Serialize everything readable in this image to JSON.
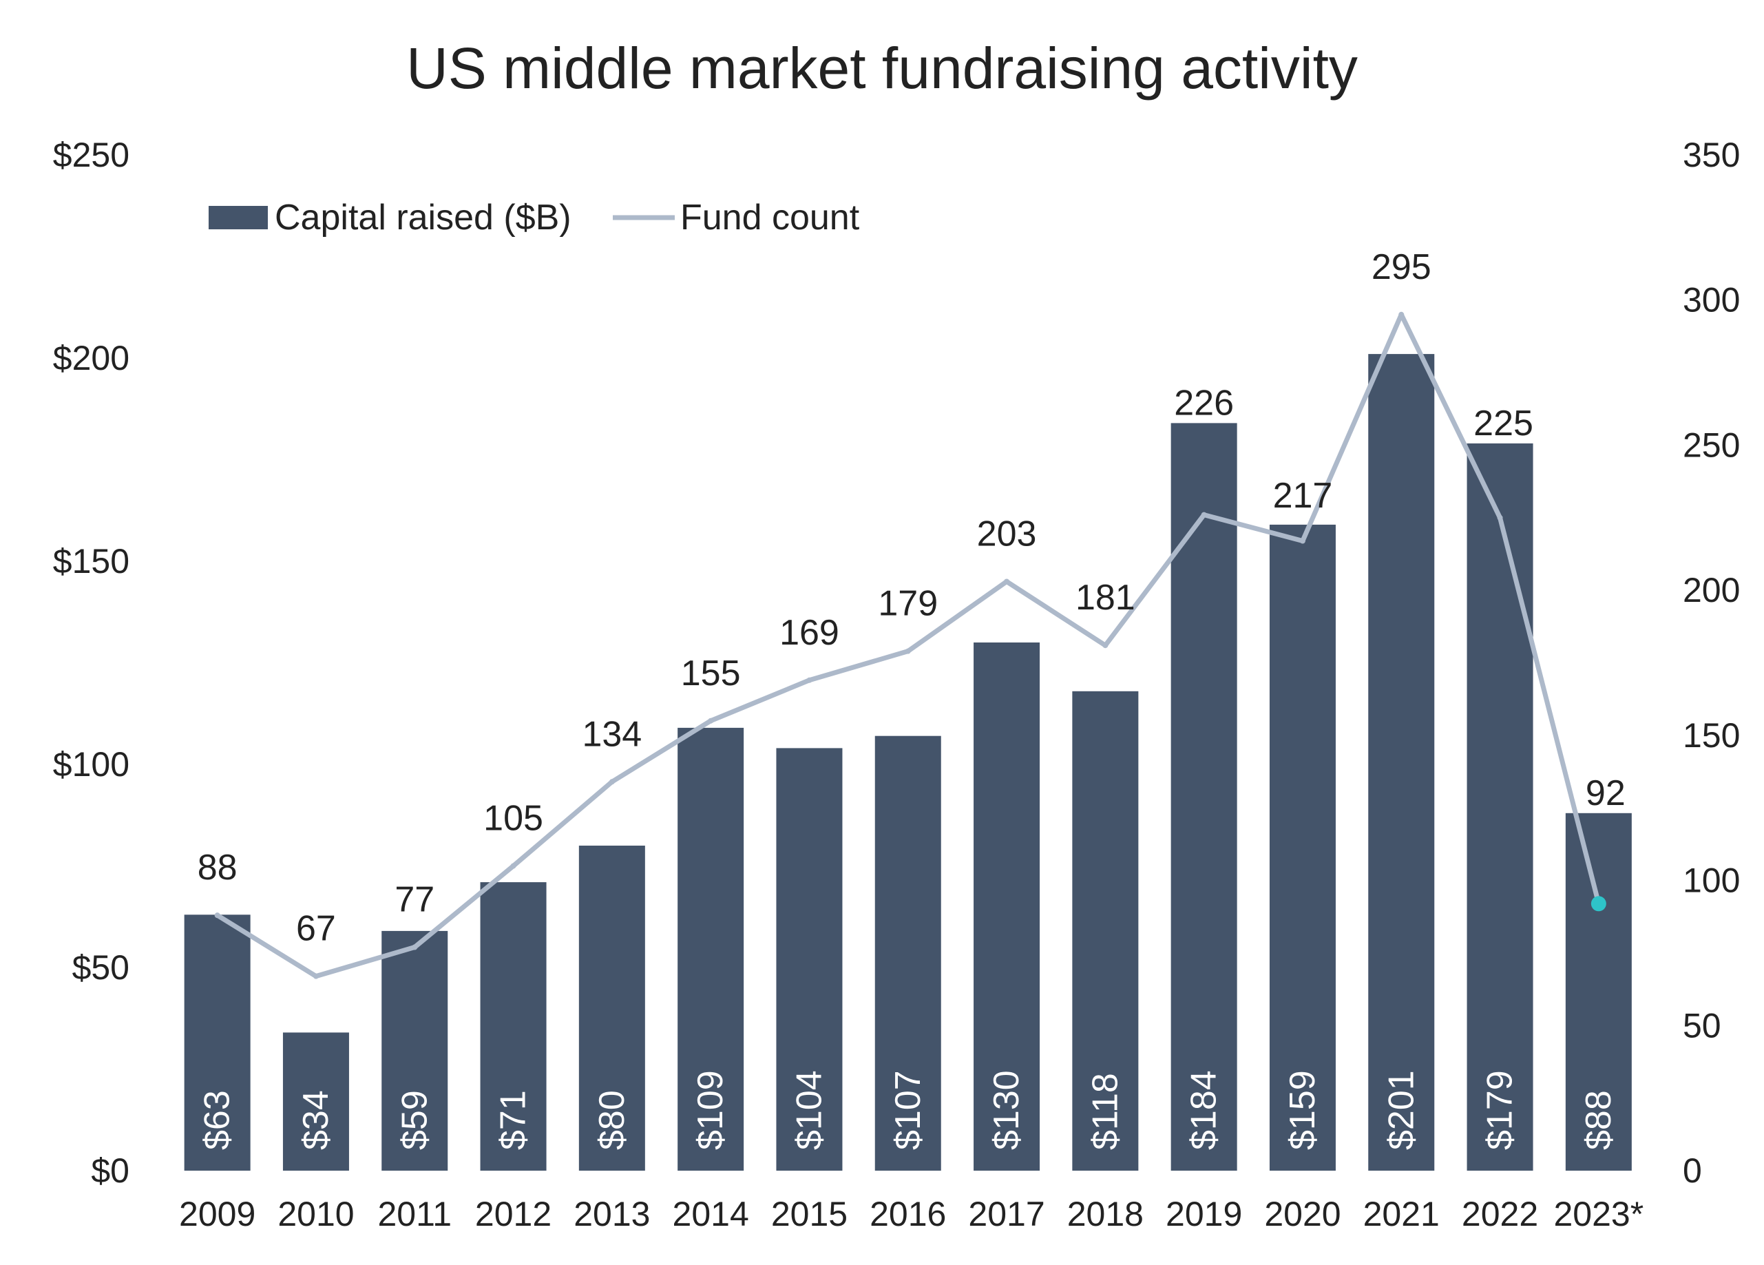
{
  "chart_data": {
    "type": "bar",
    "title": "US middle market fundraising activity",
    "categories": [
      "2009",
      "2010",
      "2011",
      "2012",
      "2013",
      "2014",
      "2015",
      "2016",
      "2017",
      "2018",
      "2019",
      "2020",
      "2021",
      "2022",
      "2023*"
    ],
    "series": [
      {
        "name": "Capital raised ($B)",
        "type": "bar",
        "axis": "left",
        "values": [
          63,
          34,
          59,
          71,
          80,
          109,
          104,
          107,
          130,
          118,
          184,
          159,
          201,
          179,
          88
        ],
        "labels": [
          "$63",
          "$34",
          "$59",
          "$71",
          "$80",
          "$109",
          "$104",
          "$107",
          "$130",
          "$118",
          "$184",
          "$159",
          "$201",
          "$179",
          "$88"
        ],
        "color": "#44546a"
      },
      {
        "name": "Fund count",
        "type": "line",
        "axis": "right",
        "values": [
          88,
          67,
          77,
          105,
          134,
          155,
          169,
          179,
          203,
          181,
          226,
          217,
          295,
          225,
          92
        ],
        "labels": [
          "88",
          "67",
          "77",
          "105",
          "134",
          "155",
          "169",
          "179",
          "203",
          "181",
          "226",
          "217",
          "295",
          "225",
          "92"
        ],
        "color": "#adb9ca",
        "highlight_color": "#2ec4c9"
      }
    ],
    "y_left": {
      "range": [
        0,
        250
      ],
      "ticks": [
        0,
        50,
        100,
        150,
        200,
        250
      ],
      "tick_labels": [
        "$0",
        "$50",
        "$100",
        "$150",
        "$200",
        "$250"
      ]
    },
    "y_right": {
      "range": [
        0,
        350
      ],
      "ticks": [
        0,
        50,
        100,
        150,
        200,
        250,
        300,
        350
      ],
      "tick_labels": [
        "0",
        "50",
        "100",
        "150",
        "200",
        "250",
        "300",
        "350"
      ]
    },
    "grid": false,
    "legend": "top-left"
  }
}
